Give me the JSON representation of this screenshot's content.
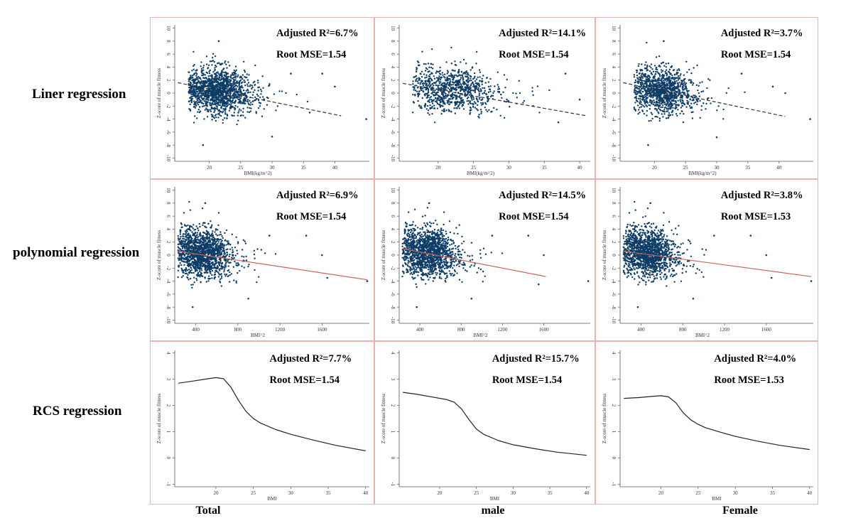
{
  "colors": {
    "scatter": "#0d3d66",
    "fit_linear": "#333333",
    "fit_poly": "#c9645a",
    "rcs_curve": "#222222",
    "panel_border": "#f0b0b0",
    "axis": "#555555"
  },
  "row_labels": [
    "Liner regression",
    "polynomial regression",
    "RCS regression"
  ],
  "col_labels": [
    "Total",
    "male",
    "Female"
  ],
  "y_label": "Z-score of muscle fitness",
  "chart_data": [
    {
      "type": "scatter",
      "row": 0,
      "col": 0,
      "fit": "dashed-linear",
      "xlabel": "BMI(kg/m^2)",
      "ylabel": "Z-score of muscle fitness",
      "xlim": [
        14.5,
        45.5
      ],
      "ylim": [
        -10.5,
        10.5
      ],
      "x_ticks": [
        20,
        25,
        30,
        35,
        40
      ],
      "y_ticks": [
        10,
        8,
        6,
        4,
        2,
        0,
        -2,
        -4,
        -6,
        -8,
        -10
      ],
      "stat_r2": "Adjusted R²=6.7%",
      "stat_rmse": "Root MSE=1.54",
      "cloud": {
        "cx": 21.5,
        "cy": 0.3,
        "sx": 2.4,
        "sy": 1.7,
        "n": 1500
      },
      "fit_line": {
        "x": [
          15,
          41
        ],
        "y": [
          1.6,
          -3.5
        ]
      },
      "outliers": [
        [
          45,
          -4
        ],
        [
          33,
          3
        ],
        [
          38,
          3
        ],
        [
          21.5,
          8
        ],
        [
          19,
          -8
        ],
        [
          30,
          -6.7
        ],
        [
          40,
          1
        ],
        [
          36,
          -3
        ]
      ]
    },
    {
      "type": "scatter",
      "row": 0,
      "col": 1,
      "fit": "dashed-linear",
      "xlabel": "BMI(kg/m^2)",
      "ylabel": "Z-score of muscle fitness",
      "xlim": [
        14.5,
        41.5
      ],
      "ylim": [
        -10.5,
        10.5
      ],
      "x_ticks": [
        20,
        25,
        30,
        35,
        40
      ],
      "y_ticks": [
        10,
        8,
        6,
        4,
        2,
        0,
        -2,
        -4,
        -6,
        -8,
        -10
      ],
      "stat_r2": "Adjusted R²=14.1%",
      "stat_rmse": "Root MSE=1.54",
      "cloud": {
        "cx": 22,
        "cy": 0.5,
        "sx": 2.8,
        "sy": 1.7,
        "n": 900
      },
      "fit_line": {
        "x": [
          15,
          41
        ],
        "y": [
          1.5,
          -3.5
        ]
      },
      "outliers": [
        [
          38,
          3
        ],
        [
          40,
          -1
        ],
        [
          37,
          -4.5
        ],
        [
          19,
          4.5
        ]
      ]
    },
    {
      "type": "scatter",
      "row": 0,
      "col": 2,
      "fit": "dashed-linear",
      "xlabel": "BMI(kg/m^2)",
      "ylabel": "Z-score of muscle fitness",
      "xlim": [
        14.5,
        45.5
      ],
      "ylim": [
        -10.5,
        10.5
      ],
      "x_ticks": [
        20,
        25,
        30,
        35,
        40
      ],
      "y_ticks": [
        10,
        8,
        6,
        4,
        2,
        0,
        -2,
        -4,
        -6,
        -8,
        -10
      ],
      "stat_r2": "Adjusted R²=3.7%",
      "stat_rmse": "Root MSE=1.54",
      "cloud": {
        "cx": 21.3,
        "cy": 0.3,
        "sx": 2.3,
        "sy": 1.7,
        "n": 1200
      },
      "fit_line": {
        "x": [
          15,
          41
        ],
        "y": [
          1.6,
          -3.6
        ]
      },
      "outliers": [
        [
          45,
          -4
        ],
        [
          34,
          3
        ],
        [
          21.5,
          8
        ],
        [
          19,
          -8
        ],
        [
          30,
          -6.8
        ],
        [
          39,
          1
        ],
        [
          41,
          0
        ]
      ]
    },
    {
      "type": "scatter",
      "row": 1,
      "col": 0,
      "fit": "linear",
      "xlabel": "BMI^2",
      "ylabel": "Z-score of muscle fitness",
      "xlim": [
        200,
        2050
      ],
      "ylim": [
        -10.5,
        10.5
      ],
      "x_ticks": [
        400,
        800,
        1200,
        1600
      ],
      "y_ticks": [
        10,
        8,
        6,
        4,
        2,
        0,
        -2,
        -4,
        -6,
        -8,
        -10
      ],
      "stat_r2": "Adjusted R²=6.9%",
      "stat_rmse": "Root MSE=1.54",
      "cloud": {
        "cx": 470,
        "cy": 0.3,
        "sx": 120,
        "sy": 1.8,
        "n": 1500
      },
      "fit_line": {
        "x": [
          230,
          2030
        ],
        "y": [
          0.6,
          -3.8
        ]
      },
      "outliers": [
        [
          2030,
          -4
        ],
        [
          1100,
          3
        ],
        [
          1450,
          3
        ],
        [
          490,
          8
        ],
        [
          370,
          -8
        ],
        [
          900,
          -6.7
        ],
        [
          1600,
          0
        ],
        [
          1650,
          -3.5
        ]
      ]
    },
    {
      "type": "scatter",
      "row": 1,
      "col": 1,
      "fit": "linear",
      "xlabel": "BMI^2",
      "ylabel": "Z-score of muscle fitness",
      "xlim": [
        200,
        2050
      ],
      "ylim": [
        -10.5,
        10.5
      ],
      "x_ticks": [
        400,
        800,
        1200,
        1600
      ],
      "y_ticks": [
        10,
        8,
        6,
        4,
        2,
        0,
        -2,
        -4,
        -6,
        -8,
        -10
      ],
      "stat_r2": "Adjusted R²=14.5%",
      "stat_rmse": "Root MSE=1.54",
      "cloud": {
        "cx": 480,
        "cy": 0.4,
        "sx": 125,
        "sy": 1.8,
        "n": 1500
      },
      "fit_line": {
        "x": [
          230,
          1620
        ],
        "y": [
          1.0,
          -3.3
        ]
      },
      "outliers": [
        [
          2030,
          -4
        ],
        [
          1100,
          3
        ],
        [
          1450,
          3
        ],
        [
          490,
          8
        ],
        [
          370,
          -8
        ],
        [
          900,
          -6.7
        ],
        [
          1600,
          0
        ],
        [
          1550,
          -4.5
        ]
      ]
    },
    {
      "type": "scatter",
      "row": 1,
      "col": 2,
      "fit": "linear",
      "xlabel": "BMI^2",
      "ylabel": "Z-score of muscle fitness",
      "xlim": [
        200,
        2050
      ],
      "ylim": [
        -10.5,
        10.5
      ],
      "x_ticks": [
        400,
        800,
        1200,
        1600
      ],
      "y_ticks": [
        10,
        8,
        6,
        4,
        2,
        0,
        -2,
        -4,
        -6,
        -8,
        -10
      ],
      "stat_r2": "Adjusted R²=3.8%",
      "stat_rmse": "Root MSE=1.53",
      "cloud": {
        "cx": 470,
        "cy": 0.3,
        "sx": 120,
        "sy": 1.8,
        "n": 1500
      },
      "fit_line": {
        "x": [
          230,
          2030
        ],
        "y": [
          0.6,
          -3.3
        ]
      },
      "outliers": [
        [
          2030,
          -4
        ],
        [
          1100,
          3
        ],
        [
          1450,
          3
        ],
        [
          490,
          8
        ],
        [
          370,
          -8
        ],
        [
          900,
          -6.7
        ],
        [
          1600,
          0
        ],
        [
          1650,
          -3.5
        ]
      ]
    },
    {
      "type": "line",
      "row": 2,
      "col": 0,
      "xlabel": "BMI",
      "ylabel": "Z-score of muscle fitness",
      "xlim": [
        14.5,
        40.5
      ],
      "ylim": [
        -1.1,
        4.1
      ],
      "x_ticks": [
        20,
        25,
        30,
        35,
        40
      ],
      "y_ticks": [
        4,
        3,
        2,
        1,
        0,
        -1
      ],
      "stat_r2": "Adjusted R²=7.7%",
      "stat_rmse": "Root MSE=1.54",
      "x": [
        15,
        17,
        19,
        20,
        21,
        22,
        23,
        24,
        25,
        26,
        28,
        30,
        33,
        36,
        40
      ],
      "y": [
        2.85,
        2.93,
        3.02,
        3.06,
        3.02,
        2.7,
        2.2,
        1.78,
        1.5,
        1.32,
        1.08,
        0.9,
        0.68,
        0.48,
        0.27
      ]
    },
    {
      "type": "line",
      "row": 2,
      "col": 1,
      "xlabel": "BMI",
      "ylabel": "Z-score of muscle fitness",
      "xlim": [
        14.5,
        40.5
      ],
      "ylim": [
        -1.1,
        4.1
      ],
      "x_ticks": [
        20,
        25,
        30,
        35,
        40
      ],
      "y_ticks": [
        4,
        3,
        2,
        1,
        0,
        -1
      ],
      "stat_r2": "Adjusted R²=15.7%",
      "stat_rmse": "Root MSE=1.54",
      "x": [
        15,
        17,
        19,
        21,
        22,
        23,
        24,
        25,
        26,
        28,
        30,
        33,
        36,
        40
      ],
      "y": [
        2.5,
        2.42,
        2.32,
        2.22,
        2.12,
        1.86,
        1.46,
        1.1,
        0.9,
        0.66,
        0.5,
        0.35,
        0.22,
        0.1
      ]
    },
    {
      "type": "line",
      "row": 2,
      "col": 2,
      "xlabel": "BMI",
      "ylabel": "Z-score of muscle fitness",
      "xlim": [
        14.5,
        40.5
      ],
      "ylim": [
        -1.1,
        4.1
      ],
      "x_ticks": [
        20,
        25,
        30,
        35,
        40
      ],
      "y_ticks": [
        4,
        3,
        2,
        1,
        0,
        -1
      ],
      "stat_r2": "Adjusted R²=4.0%",
      "stat_rmse": "Root MSE=1.53",
      "x": [
        15,
        17,
        19,
        20,
        21,
        22,
        23,
        24,
        25,
        26,
        28,
        30,
        33,
        36,
        40
      ],
      "y": [
        2.27,
        2.3,
        2.35,
        2.37,
        2.33,
        2.1,
        1.72,
        1.45,
        1.28,
        1.15,
        0.98,
        0.82,
        0.64,
        0.48,
        0.32
      ]
    }
  ]
}
